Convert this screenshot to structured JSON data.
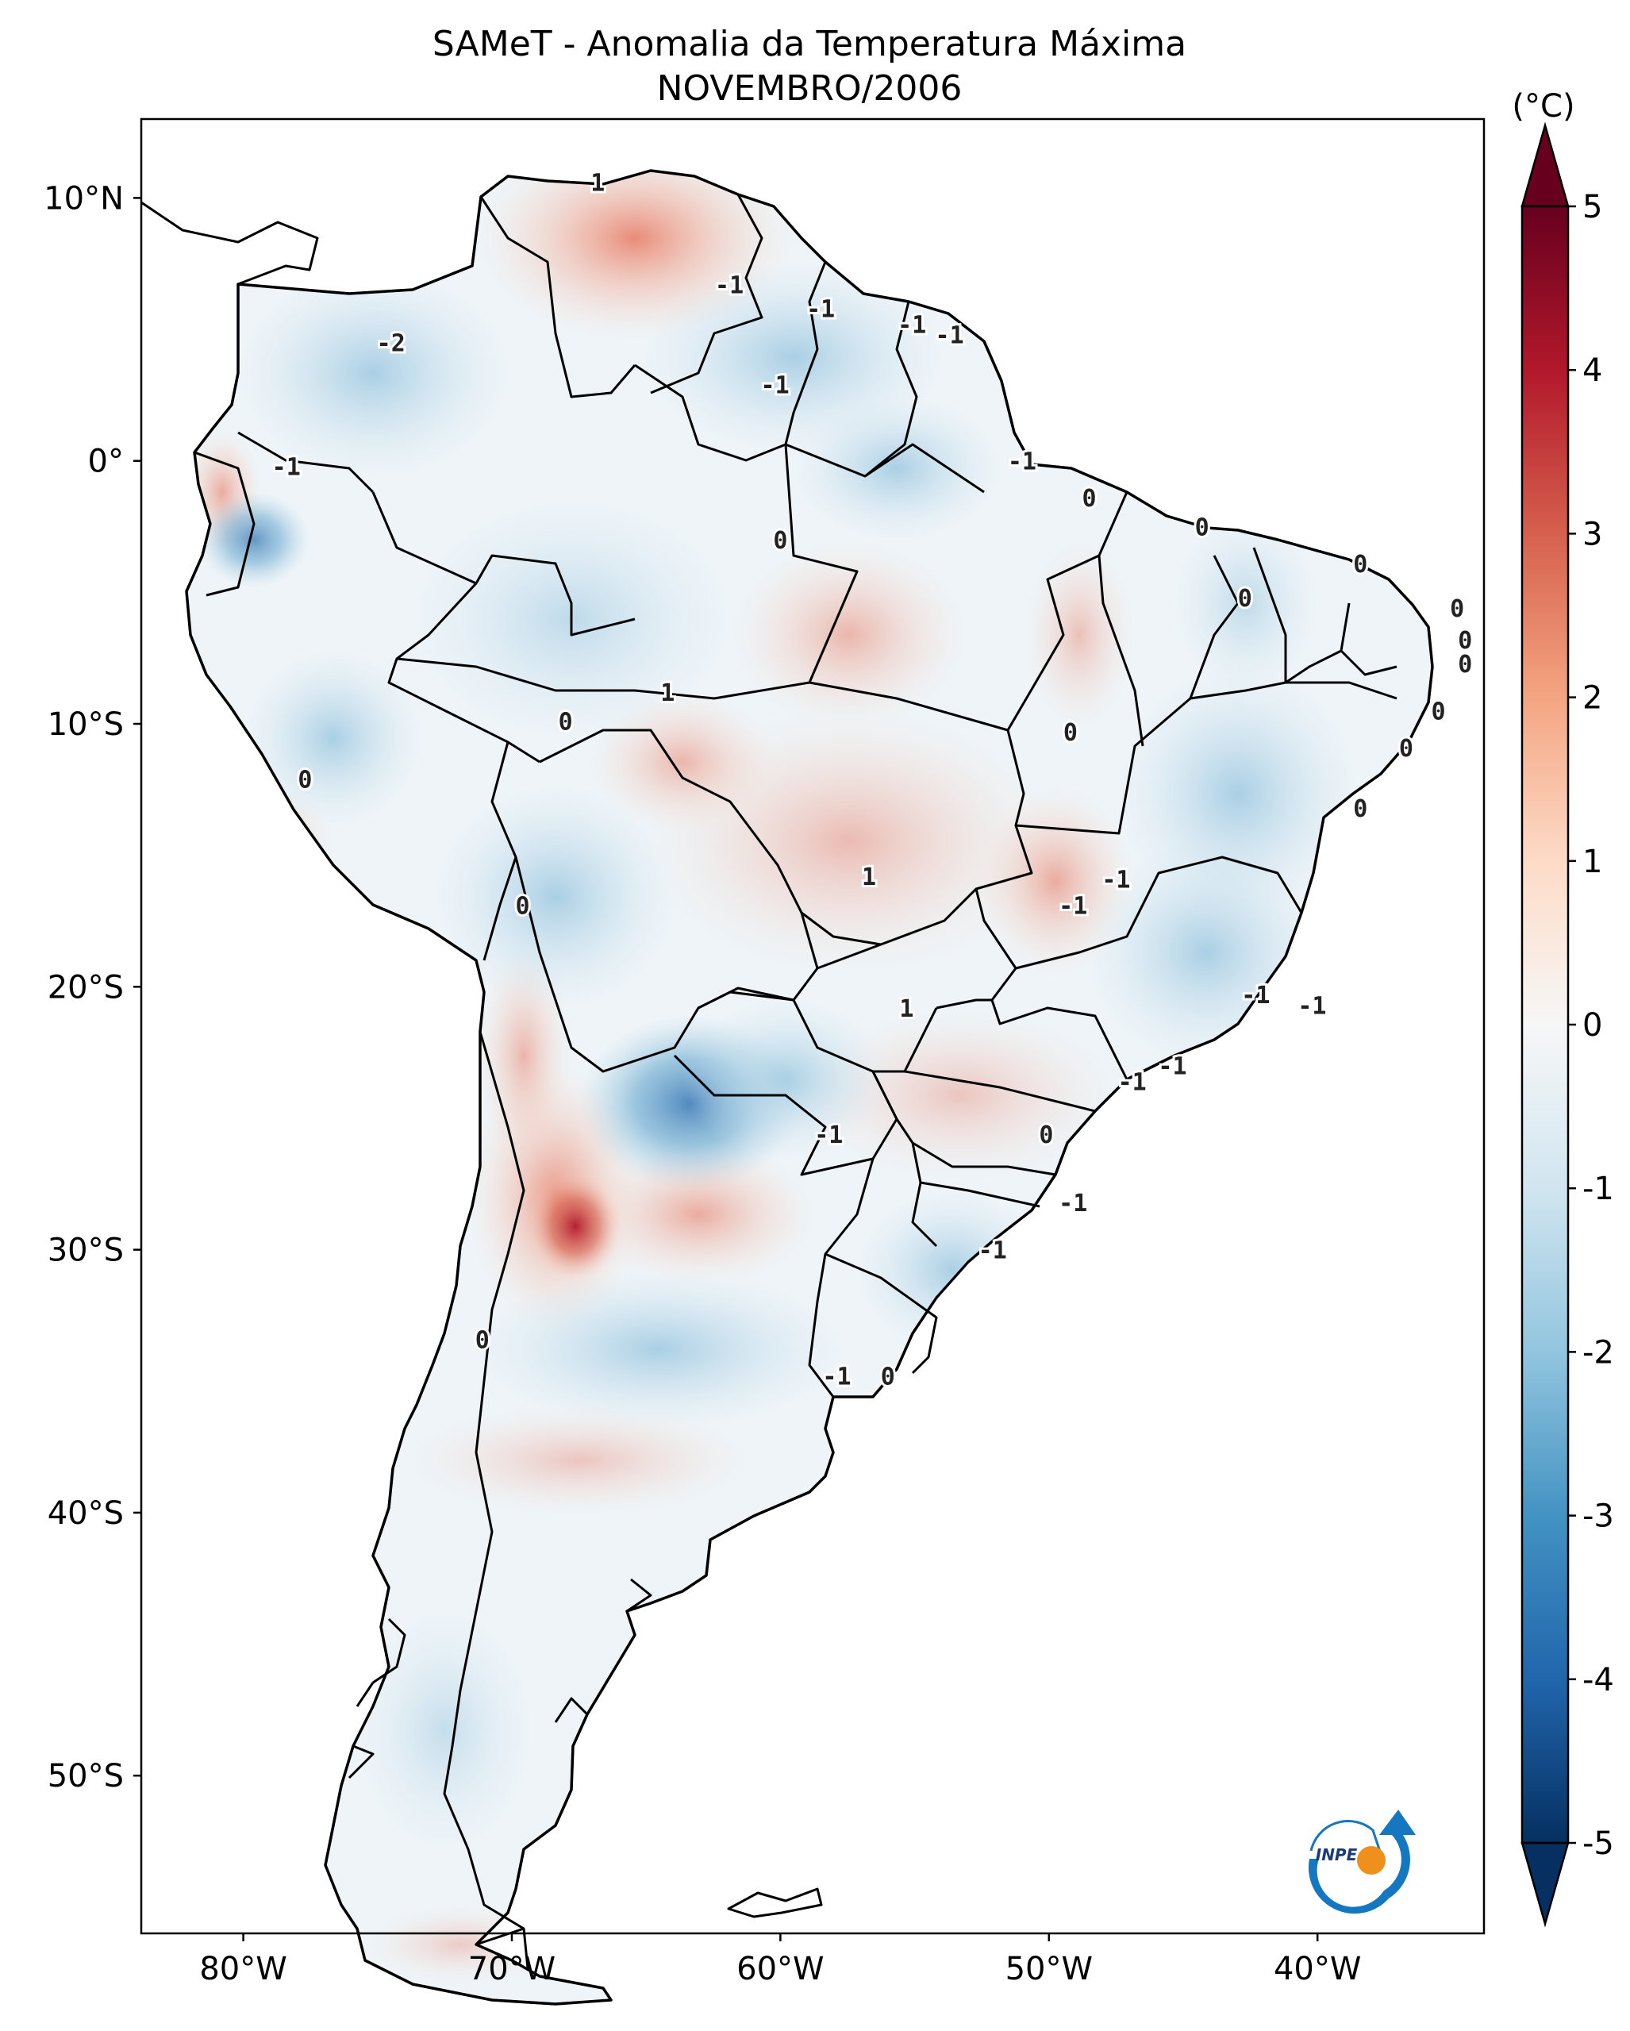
{
  "map": {
    "title": "SAMeT - Anomalia da Temperatura Máxima",
    "subtitle": "NOVEMBRO/2006",
    "lat_ticks": [
      {
        "value": 10,
        "label": "10°N"
      },
      {
        "value": 0,
        "label": "0°"
      },
      {
        "value": -10,
        "label": "10°S"
      },
      {
        "value": -20,
        "label": "20°S"
      },
      {
        "value": -30,
        "label": "30°S"
      },
      {
        "value": -40,
        "label": "40°S"
      },
      {
        "value": -50,
        "label": "50°S"
      }
    ],
    "lon_ticks": [
      {
        "value": -80,
        "label": "80°W"
      },
      {
        "value": -70,
        "label": "70°W"
      },
      {
        "value": -60,
        "label": "60°W"
      },
      {
        "value": -50,
        "label": "50°W"
      },
      {
        "value": -40,
        "label": "40°W"
      }
    ],
    "extent": {
      "lon_min": -83.8,
      "lon_max": -33.8,
      "lat_min": -56.0,
      "lat_max": 13.0
    },
    "contour_labels": [
      {
        "text": "1",
        "lon": -66.8,
        "lat": 10.6
      },
      {
        "text": "-1",
        "lon": -61.9,
        "lat": 6.7
      },
      {
        "text": "-1",
        "lon": -58.5,
        "lat": 5.8
      },
      {
        "text": "-1",
        "lon": -55.1,
        "lat": 5.2
      },
      {
        "text": "-1",
        "lon": -53.7,
        "lat": 4.8
      },
      {
        "text": "-2",
        "lon": -74.5,
        "lat": 4.5
      },
      {
        "text": "-1",
        "lon": -60.2,
        "lat": 2.9
      },
      {
        "text": "-1",
        "lon": -78.4,
        "lat": -0.2
      },
      {
        "text": "-1",
        "lon": -51.0,
        "lat": 0.0
      },
      {
        "text": "0",
        "lon": -48.5,
        "lat": -1.4
      },
      {
        "text": "0",
        "lon": -44.3,
        "lat": -2.5
      },
      {
        "text": "0",
        "lon": -60.0,
        "lat": -3.0
      },
      {
        "text": "0",
        "lon": -38.4,
        "lat": -3.9
      },
      {
        "text": "0",
        "lon": -42.7,
        "lat": -5.2
      },
      {
        "text": "0",
        "lon": -34.8,
        "lat": -5.6
      },
      {
        "text": "0",
        "lon": -34.5,
        "lat": -6.8
      },
      {
        "text": "0",
        "lon": -34.5,
        "lat": -7.7
      },
      {
        "text": "1",
        "lon": -64.2,
        "lat": -8.8
      },
      {
        "text": "0",
        "lon": -35.5,
        "lat": -9.5
      },
      {
        "text": "0",
        "lon": -68.0,
        "lat": -9.9
      },
      {
        "text": "0",
        "lon": -49.2,
        "lat": -10.3
      },
      {
        "text": "0",
        "lon": -36.7,
        "lat": -10.9
      },
      {
        "text": "0",
        "lon": -77.7,
        "lat": -12.1
      },
      {
        "text": "0",
        "lon": -38.4,
        "lat": -13.2
      },
      {
        "text": "1",
        "lon": -56.7,
        "lat": -15.8
      },
      {
        "text": "-1",
        "lon": -47.5,
        "lat": -15.9
      },
      {
        "text": "-1",
        "lon": -49.1,
        "lat": -16.9
      },
      {
        "text": "0",
        "lon": -69.6,
        "lat": -16.9
      },
      {
        "text": "-1",
        "lon": -42.3,
        "lat": -20.3
      },
      {
        "text": "1",
        "lon": -55.3,
        "lat": -20.8
      },
      {
        "text": "-1",
        "lon": -40.2,
        "lat": -20.7
      },
      {
        "text": "-1",
        "lon": -45.4,
        "lat": -23.0
      },
      {
        "text": "-1",
        "lon": -46.9,
        "lat": -23.6
      },
      {
        "text": "-1",
        "lon": -58.2,
        "lat": -25.6
      },
      {
        "text": "0",
        "lon": -50.1,
        "lat": -25.6
      },
      {
        "text": "-1",
        "lon": -49.1,
        "lat": -28.2
      },
      {
        "text": "-1",
        "lon": -52.1,
        "lat": -30.0
      },
      {
        "text": "0",
        "lon": -71.1,
        "lat": -33.4
      },
      {
        "text": "-1",
        "lon": -57.9,
        "lat": -34.8
      },
      {
        "text": "0",
        "lon": -56.0,
        "lat": -34.8
      }
    ]
  },
  "colorbar": {
    "unit_label": "(°C)",
    "ticks": [
      {
        "value": 5,
        "label": "5"
      },
      {
        "value": 4,
        "label": "4"
      },
      {
        "value": 3,
        "label": "3"
      },
      {
        "value": 2,
        "label": "2"
      },
      {
        "value": 1,
        "label": "1"
      },
      {
        "value": 0,
        "label": "0"
      },
      {
        "value": -1,
        "label": "-1"
      },
      {
        "value": -2,
        "label": "-2"
      },
      {
        "value": -3,
        "label": "-3"
      },
      {
        "value": -4,
        "label": "-4"
      },
      {
        "value": -5,
        "label": "-5"
      }
    ],
    "range": [
      -5,
      5
    ],
    "colors": [
      "#053061",
      "#2166ac",
      "#4393c3",
      "#92c5de",
      "#d1e5f0",
      "#f7f7f7",
      "#fddbc7",
      "#f4a582",
      "#d6604d",
      "#b2182b",
      "#67001f"
    ]
  },
  "logo": {
    "text": "INPE",
    "colors": {
      "arc": "#1577c0",
      "dot": "#f0901c"
    }
  }
}
